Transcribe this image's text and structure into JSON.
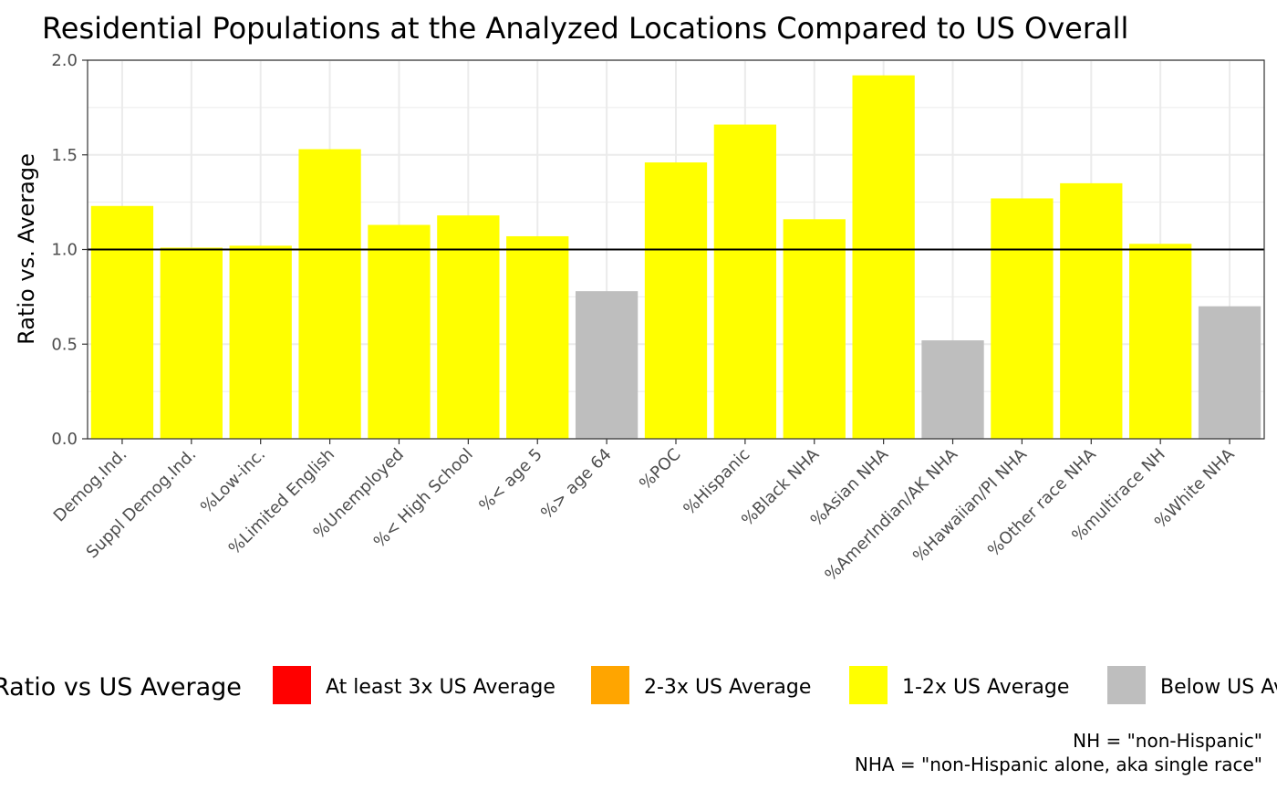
{
  "chart_data": {
    "type": "bar",
    "title": "Residential Populations at the Analyzed Locations Compared to US Overall",
    "xlabel": "",
    "ylabel": "Ratio vs. Average",
    "ylim": [
      0,
      2.0
    ],
    "yticks": [
      "0.0",
      "0.5",
      "1.0",
      "1.5",
      "2.0"
    ],
    "reference_line": 1.0,
    "grid": true,
    "categories": [
      "Demog.Ind.",
      "Suppl Demog.Ind.",
      "%Low-inc.",
      "%Limited English",
      "%Unemployed",
      "%< High School",
      "%< age 5",
      "%> age 64",
      "%POC",
      "%Hispanic",
      "%Black NHA",
      "%Asian NHA",
      "%AmerIndian/AK NHA",
      "%Hawaiian/PI NHA",
      "%Other race NHA",
      "%multirace NH",
      "%White NHA"
    ],
    "values": [
      1.23,
      1.01,
      1.02,
      1.53,
      1.13,
      1.18,
      1.07,
      0.78,
      1.46,
      1.66,
      1.16,
      1.92,
      0.52,
      1.27,
      1.35,
      1.03,
      0.7
    ],
    "groups": [
      "1-2x US Average",
      "1-2x US Average",
      "1-2x US Average",
      "1-2x US Average",
      "1-2x US Average",
      "1-2x US Average",
      "1-2x US Average",
      "Below US Average",
      "1-2x US Average",
      "1-2x US Average",
      "1-2x US Average",
      "1-2x US Average",
      "Below US Average",
      "1-2x US Average",
      "1-2x US Average",
      "1-2x US Average",
      "Below US Average"
    ],
    "legend": {
      "title": "Ratio vs US Average",
      "position": "bottom",
      "items": [
        {
          "label": "At least 3x US Average",
          "color": "#ff0000"
        },
        {
          "label": "2-3x US Average",
          "color": "#ffa500"
        },
        {
          "label": "1-2x US Average",
          "color": "#ffff00"
        },
        {
          "label": "Below US Average",
          "color": "#bebebe"
        }
      ]
    },
    "caption": [
      "NH = \"non-Hispanic\"",
      "NHA = \"non-Hispanic alone, aka single race\""
    ]
  }
}
